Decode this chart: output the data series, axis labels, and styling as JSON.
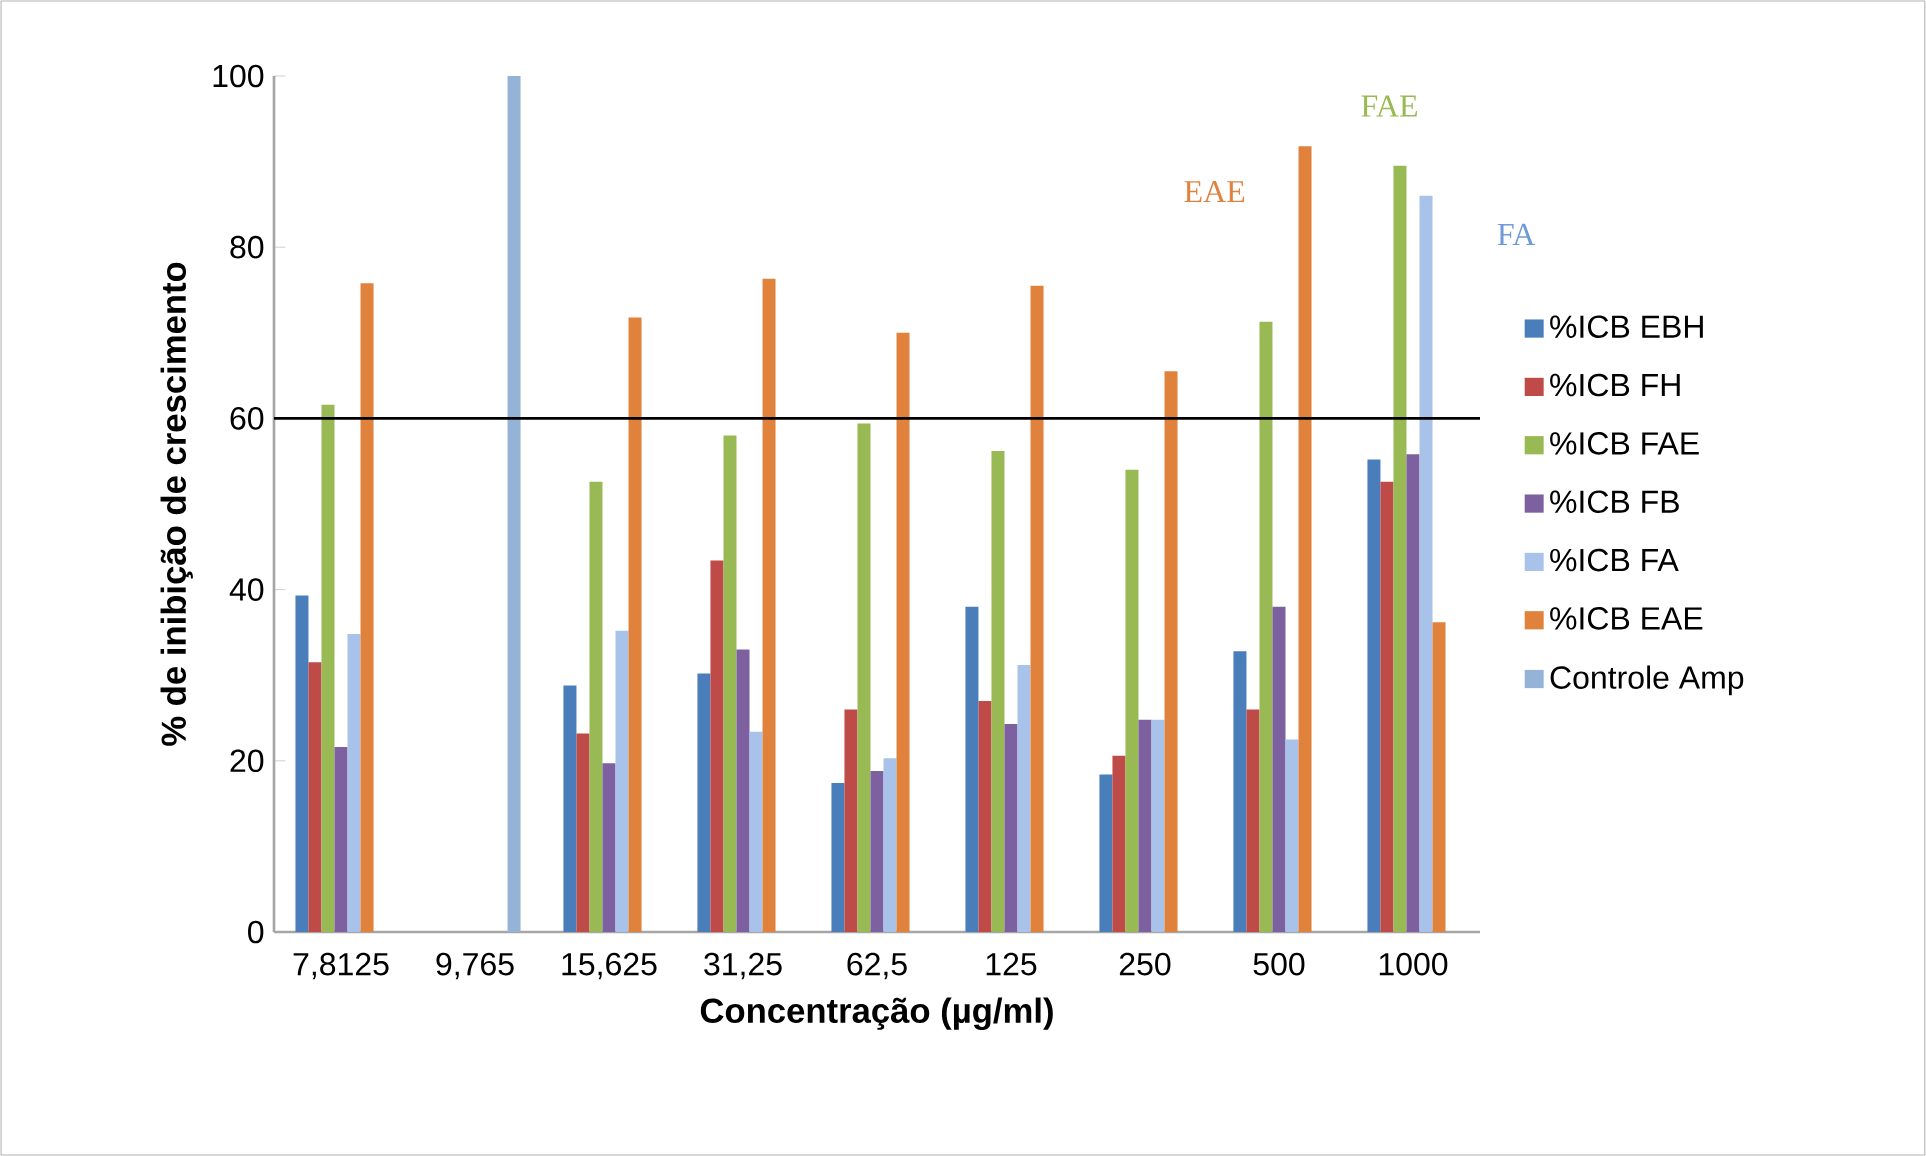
{
  "chart_data": {
    "type": "bar",
    "xlabel": "Concentração (µg/ml)",
    "ylabel": "% de inibição de crescimento",
    "categories": [
      "7,8125",
      "9,765",
      "15,625",
      "31,25",
      "62,5",
      "125",
      "250",
      "500",
      "1000"
    ],
    "series": [
      {
        "name": "%ICB EBH",
        "color": "#4a7ebb",
        "values": [
          39.3,
          null,
          28.8,
          30.2,
          17.4,
          38,
          18.4,
          32.8,
          55.2
        ]
      },
      {
        "name": "%ICB FH",
        "color": "#be4b48",
        "values": [
          31.5,
          null,
          23.2,
          43.4,
          26,
          27,
          20.6,
          26,
          52.6
        ]
      },
      {
        "name": "%ICB FAE",
        "color": "#98b954",
        "values": [
          61.6,
          null,
          52.6,
          58,
          59.4,
          56.2,
          54,
          71.3,
          89.5
        ]
      },
      {
        "name": "%ICB FB",
        "color": "#7d60a0",
        "values": [
          21.6,
          null,
          19.7,
          33,
          18.8,
          24.3,
          24.8,
          38,
          55.8
        ]
      },
      {
        "name": "%ICB FA",
        "color": "#a9c2ea",
        "values": [
          34.8,
          null,
          35.2,
          23.4,
          20.3,
          31.2,
          24.8,
          22.5,
          86
        ]
      },
      {
        "name": "%ICB EAE",
        "color": "#e0823c",
        "values": [
          75.8,
          null,
          71.8,
          76.3,
          70,
          75.5,
          65.5,
          91.8,
          36.2
        ]
      },
      {
        "name": "Controle Amp",
        "color": "#95b3d7",
        "values": [
          null,
          100,
          null,
          null,
          null,
          null,
          null,
          null,
          null
        ]
      }
    ],
    "ylim": [
      0,
      100
    ],
    "yticks": [
      0,
      20,
      40,
      60,
      80,
      100
    ],
    "grid": false,
    "legend": "right",
    "ref_lines": [
      {
        "axis": "y",
        "value": 60,
        "color": "#000000"
      }
    ],
    "annotations": [
      "EAE",
      "FAE",
      "FA"
    ]
  }
}
